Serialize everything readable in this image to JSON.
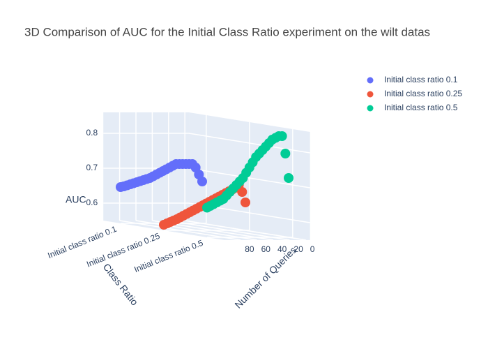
{
  "chart_data": {
    "type": "scatter3d",
    "title": "3D Comparison of AUC for the Initial Class Ratio experiment on the wilt datas",
    "x_label": "Number of Queries",
    "y_label": "Class Ratio",
    "z_label": "AUC",
    "categories": [
      "Initial class ratio 0.1",
      "Initial class ratio 0.25",
      "Initial class ratio 0.5"
    ],
    "x": [
      0,
      4,
      8,
      12,
      16,
      20,
      24,
      28,
      32,
      36,
      40,
      44,
      48,
      52,
      56,
      60,
      64,
      68,
      72,
      76,
      80,
      84,
      88,
      92,
      96,
      100
    ],
    "xlim": [
      -5,
      100
    ],
    "xticks": [
      0,
      20,
      40,
      60,
      80
    ],
    "zlim": [
      0.55,
      0.86
    ],
    "zticks": [
      0.6,
      0.7,
      0.8
    ],
    "series": [
      {
        "name": "Initial class ratio 0.1",
        "color": "#636efa",
        "values": [
          0.67,
          0.69,
          0.71,
          0.72,
          0.72,
          0.72,
          0.72,
          0.72,
          0.72,
          0.715,
          0.71,
          0.705,
          0.7,
          0.695,
          0.69,
          0.685,
          0.68,
          0.677,
          0.674,
          0.671,
          0.668,
          0.665,
          0.662,
          0.659,
          0.656,
          0.654
        ]
      },
      {
        "name": "Initial class ratio 0.25",
        "color": "#ef553b",
        "values": [
          0.63,
          0.66,
          0.68,
          0.672,
          0.667,
          0.662,
          0.657,
          0.652,
          0.647,
          0.642,
          0.637,
          0.632,
          0.627,
          0.622,
          0.617,
          0.612,
          0.607,
          0.602,
          0.597,
          0.592,
          0.587,
          0.582,
          0.578,
          0.574,
          0.57,
          0.566
        ]
      },
      {
        "name": "Initial class ratio 0.5",
        "color": "#00cc96",
        "values": [
          0.72,
          0.79,
          0.84,
          0.84,
          0.835,
          0.83,
          0.82,
          0.81,
          0.8,
          0.79,
          0.78,
          0.765,
          0.75,
          0.735,
          0.72,
          0.71,
          0.7,
          0.69,
          0.68,
          0.67,
          0.66,
          0.655,
          0.65,
          0.645,
          0.64,
          0.635
        ]
      }
    ]
  }
}
